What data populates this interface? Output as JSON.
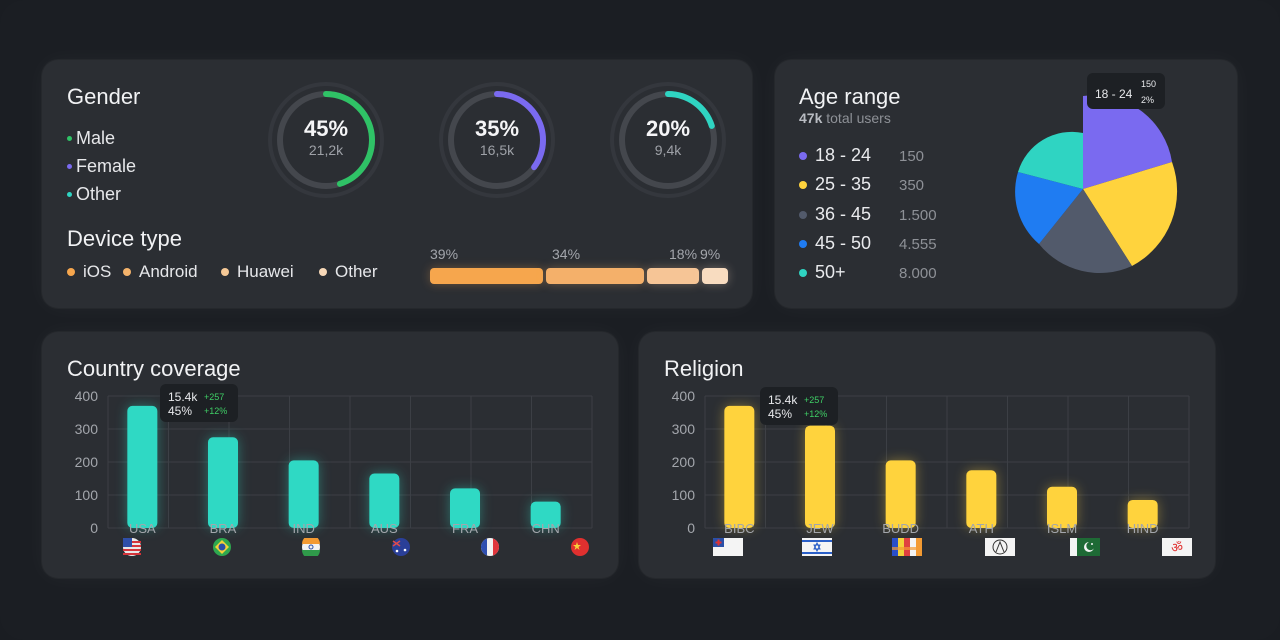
{
  "gender": {
    "title": "Gender",
    "legend": [
      {
        "label": "Male",
        "color": "#2fc266"
      },
      {
        "label": "Female",
        "color": "#7a6af0"
      },
      {
        "label": "Other",
        "color": "#2fd4c2"
      }
    ],
    "rings": [
      {
        "pct_label": "45%",
        "count": "21,2k",
        "value": 0.45,
        "color": "#2fc266"
      },
      {
        "pct_label": "35%",
        "count": "16,5k",
        "value": 0.35,
        "color": "#7a6af0"
      },
      {
        "pct_label": "20%",
        "count": "9,4k",
        "value": 0.2,
        "color": "#2fd4c2"
      }
    ]
  },
  "device": {
    "title": "Device type",
    "legend": [
      {
        "label": "iOS",
        "color": "#f6a64d"
      },
      {
        "label": "Android",
        "color": "#f4b36b"
      },
      {
        "label": "Huawei",
        "color": "#f5c896"
      },
      {
        "label": "Other",
        "color": "#f7d8b8"
      }
    ],
    "bar": [
      {
        "label": "39%",
        "value": 39,
        "color": "#f6a64d"
      },
      {
        "label": "34%",
        "value": 34,
        "color": "#f4b06a"
      },
      {
        "label": "18%",
        "value": 18,
        "color": "#f6c596"
      },
      {
        "label": "9%",
        "value": 9,
        "color": "#f8dcc0"
      }
    ]
  },
  "age": {
    "title": "Age range",
    "total_strong": "47k",
    "total_rest": "total users",
    "rows": [
      {
        "label": "18 - 24",
        "value": "150",
        "color": "#7a6af0"
      },
      {
        "label": "25 - 35",
        "value": "350",
        "color": "#ffd33d"
      },
      {
        "label": "36 - 45",
        "value": "1.500",
        "color": "#525a6b"
      },
      {
        "label": "45 - 50",
        "value": "4.555",
        "color": "#1f7cf2"
      },
      {
        "label": "50+",
        "value": "8.000",
        "color": "#2fd4c2"
      }
    ],
    "tooltip": {
      "range": "18 - 24",
      "count": "150",
      "pct": "2%"
    }
  },
  "country": {
    "title": "Country coverage",
    "tooltip": {
      "value": "15.4k",
      "delta": "+257",
      "pct": "45%",
      "pct_delta": "+12%"
    },
    "chart_data": {
      "type": "bar",
      "categories": [
        "USA",
        "BRA",
        "IND",
        "AUS",
        "FRA",
        "CHN"
      ],
      "values": [
        370,
        275,
        205,
        165,
        120,
        80
      ],
      "ylim": [
        0,
        400
      ],
      "yticks": [
        400,
        300,
        200,
        100,
        0
      ],
      "color": "#2fd9c4"
    }
  },
  "religion": {
    "title": "Religion",
    "tooltip": {
      "value": "15.4k",
      "delta": "+257",
      "pct": "45%",
      "pct_delta": "+12%"
    },
    "chart_data": {
      "type": "bar",
      "categories": [
        "BIBC",
        "JEW",
        "BUDD",
        "ATH",
        "ISLM",
        "HIND"
      ],
      "values": [
        370,
        310,
        205,
        175,
        125,
        85
      ],
      "ylim": [
        0,
        400
      ],
      "yticks": [
        400,
        300,
        200,
        100,
        0
      ],
      "color": "#ffd33d"
    }
  }
}
